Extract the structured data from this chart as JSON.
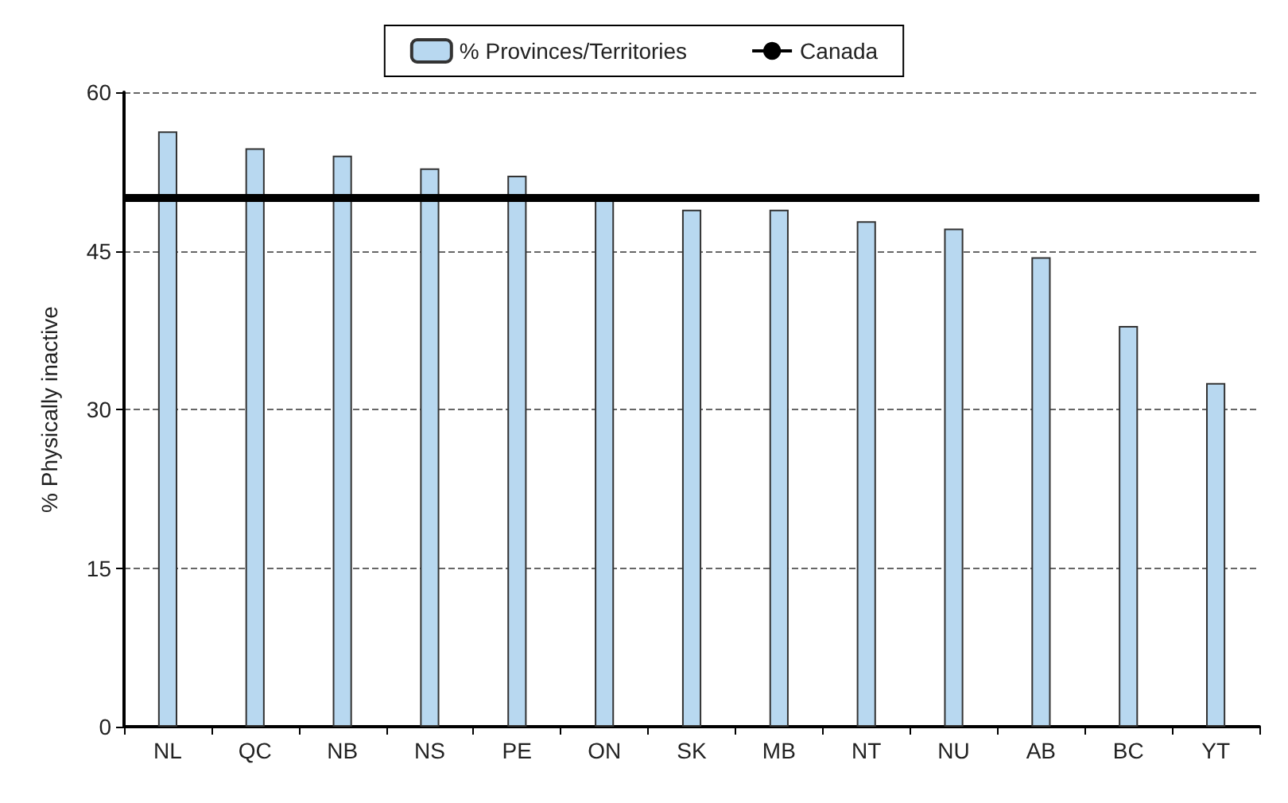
{
  "chart_data": {
    "type": "bar",
    "ylabel": "% Physically inactive",
    "categories": [
      "NL",
      "QC",
      "NB",
      "NS",
      "PE",
      "ON",
      "SK",
      "MB",
      "NT",
      "NU",
      "AB",
      "BC",
      "YT"
    ],
    "series": [
      {
        "name": "% Provinces/Territories",
        "color": "#b8d8f0",
        "values": [
          56.3,
          54.7,
          54.0,
          52.8,
          52.1,
          49.9,
          48.9,
          48.9,
          47.8,
          47.1,
          44.4,
          37.9,
          32.5
        ]
      }
    ],
    "ylim": [
      0,
      60
    ],
    "yticks": [
      0,
      15,
      30,
      45,
      60
    ],
    "grid": "y",
    "legend": "top",
    "ref_lines": [
      {
        "axis": "y",
        "value": 50,
        "label": "Canada",
        "color": "#000000",
        "line_style": "solid"
      }
    ]
  }
}
